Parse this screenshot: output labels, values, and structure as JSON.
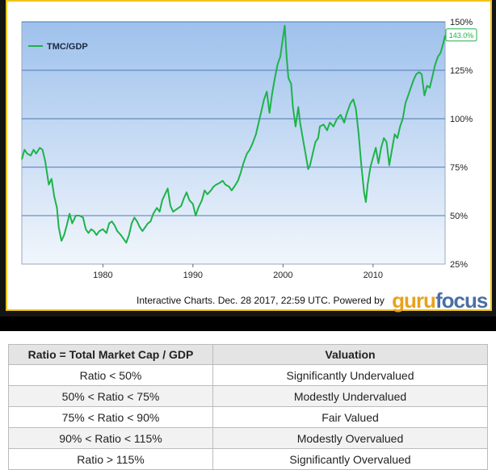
{
  "chart_data": {
    "type": "line",
    "legend": "top-left",
    "grid": true,
    "xlim": [
      1971,
      2018
    ],
    "ylim": [
      25,
      150
    ],
    "x_ticks": [
      {
        "value": 1980,
        "label": "1980"
      },
      {
        "value": 1990,
        "label": "1990"
      },
      {
        "value": 2000,
        "label": "2000"
      },
      {
        "value": 2010,
        "label": "2010"
      }
    ],
    "y_ticks": [
      {
        "value": 25,
        "label": "25%"
      },
      {
        "value": 50,
        "label": "50%"
      },
      {
        "value": 75,
        "label": "75%"
      },
      {
        "value": 100,
        "label": "100%"
      },
      {
        "value": 125,
        "label": "125%"
      },
      {
        "value": 150,
        "label": "150%"
      }
    ],
    "series": [
      {
        "name": "TMC/GDP",
        "color": "#1db34a",
        "last_label": "143.0%",
        "points": [
          [
            1971.0,
            79
          ],
          [
            1971.3,
            84
          ],
          [
            1971.6,
            82
          ],
          [
            1972.0,
            81
          ],
          [
            1972.3,
            84
          ],
          [
            1972.6,
            82
          ],
          [
            1973.0,
            85
          ],
          [
            1973.3,
            84
          ],
          [
            1973.6,
            78
          ],
          [
            1974.0,
            66
          ],
          [
            1974.3,
            69
          ],
          [
            1974.6,
            60
          ],
          [
            1974.9,
            54
          ],
          [
            1975.1,
            44
          ],
          [
            1975.4,
            37
          ],
          [
            1975.7,
            40
          ],
          [
            1976.0,
            45
          ],
          [
            1976.3,
            51
          ],
          [
            1976.6,
            46
          ],
          [
            1977.0,
            50
          ],
          [
            1977.4,
            50
          ],
          [
            1977.8,
            49
          ],
          [
            1978.1,
            43
          ],
          [
            1978.4,
            41
          ],
          [
            1978.7,
            43
          ],
          [
            1979.0,
            42
          ],
          [
            1979.3,
            40
          ],
          [
            1979.6,
            42
          ],
          [
            1980.0,
            43
          ],
          [
            1980.4,
            41
          ],
          [
            1980.7,
            46
          ],
          [
            1981.0,
            47
          ],
          [
            1981.3,
            45
          ],
          [
            1981.6,
            42
          ],
          [
            1982.0,
            40
          ],
          [
            1982.3,
            38
          ],
          [
            1982.6,
            36
          ],
          [
            1982.9,
            40
          ],
          [
            1983.2,
            46
          ],
          [
            1983.5,
            49
          ],
          [
            1983.8,
            47
          ],
          [
            1984.1,
            44
          ],
          [
            1984.4,
            42
          ],
          [
            1984.7,
            44
          ],
          [
            1985.0,
            46
          ],
          [
            1985.3,
            47
          ],
          [
            1985.6,
            51
          ],
          [
            1986.0,
            54
          ],
          [
            1986.3,
            52
          ],
          [
            1986.6,
            58
          ],
          [
            1986.9,
            61
          ],
          [
            1987.2,
            64
          ],
          [
            1987.5,
            55
          ],
          [
            1987.8,
            52
          ],
          [
            1988.1,
            53
          ],
          [
            1988.4,
            54
          ],
          [
            1988.7,
            55
          ],
          [
            1989.0,
            59
          ],
          [
            1989.3,
            62
          ],
          [
            1989.6,
            58
          ],
          [
            1990.0,
            56
          ],
          [
            1990.3,
            50
          ],
          [
            1990.6,
            54
          ],
          [
            1991.0,
            58
          ],
          [
            1991.3,
            63
          ],
          [
            1991.6,
            61
          ],
          [
            1992.0,
            63
          ],
          [
            1992.3,
            65
          ],
          [
            1992.6,
            66
          ],
          [
            1993.0,
            67
          ],
          [
            1993.3,
            68
          ],
          [
            1993.6,
            66
          ],
          [
            1994.0,
            65
          ],
          [
            1994.3,
            63
          ],
          [
            1994.6,
            65
          ],
          [
            1995.0,
            68
          ],
          [
            1995.3,
            72
          ],
          [
            1995.6,
            77
          ],
          [
            1996.0,
            82
          ],
          [
            1996.3,
            84
          ],
          [
            1996.6,
            87
          ],
          [
            1997.0,
            92
          ],
          [
            1997.3,
            98
          ],
          [
            1997.6,
            104
          ],
          [
            1997.9,
            110
          ],
          [
            1998.2,
            114
          ],
          [
            1998.5,
            103
          ],
          [
            1998.8,
            113
          ],
          [
            1999.1,
            121
          ],
          [
            1999.4,
            128
          ],
          [
            1999.7,
            132
          ],
          [
            2000.0,
            142
          ],
          [
            2000.2,
            148
          ],
          [
            2000.4,
            132
          ],
          [
            2000.6,
            121
          ],
          [
            2000.9,
            118
          ],
          [
            2001.1,
            106
          ],
          [
            2001.4,
            96
          ],
          [
            2001.7,
            106
          ],
          [
            2001.9,
            98
          ],
          [
            2002.2,
            90
          ],
          [
            2002.5,
            82
          ],
          [
            2002.8,
            74
          ],
          [
            2003.0,
            76
          ],
          [
            2003.3,
            82
          ],
          [
            2003.6,
            88
          ],
          [
            2003.9,
            90
          ],
          [
            2004.1,
            96
          ],
          [
            2004.5,
            97
          ],
          [
            2004.9,
            94
          ],
          [
            2005.2,
            98
          ],
          [
            2005.6,
            96
          ],
          [
            2006.0,
            100
          ],
          [
            2006.4,
            102
          ],
          [
            2006.8,
            98
          ],
          [
            2007.1,
            103
          ],
          [
            2007.5,
            108
          ],
          [
            2007.8,
            110
          ],
          [
            2008.1,
            105
          ],
          [
            2008.4,
            92
          ],
          [
            2008.7,
            76
          ],
          [
            2009.0,
            62
          ],
          [
            2009.2,
            57
          ],
          [
            2009.4,
            66
          ],
          [
            2009.7,
            75
          ],
          [
            2010.0,
            80
          ],
          [
            2010.3,
            85
          ],
          [
            2010.6,
            77
          ],
          [
            2010.9,
            85
          ],
          [
            2011.2,
            90
          ],
          [
            2011.5,
            88
          ],
          [
            2011.8,
            76
          ],
          [
            2012.1,
            84
          ],
          [
            2012.4,
            92
          ],
          [
            2012.7,
            90
          ],
          [
            2013.0,
            96
          ],
          [
            2013.3,
            100
          ],
          [
            2013.6,
            108
          ],
          [
            2013.9,
            112
          ],
          [
            2014.2,
            116
          ],
          [
            2014.5,
            120
          ],
          [
            2014.8,
            123
          ],
          [
            2015.1,
            124
          ],
          [
            2015.4,
            123
          ],
          [
            2015.7,
            112
          ],
          [
            2016.0,
            117
          ],
          [
            2016.3,
            116
          ],
          [
            2016.6,
            122
          ],
          [
            2016.9,
            128
          ],
          [
            2017.2,
            132
          ],
          [
            2017.5,
            134
          ],
          [
            2017.8,
            139
          ],
          [
            2018.0,
            143
          ]
        ]
      }
    ]
  },
  "credit": {
    "text": "Interactive Charts. Dec. 28 2017, 22:59 UTC. Powered by",
    "brand_a": "guru",
    "brand_b": "focus"
  },
  "table": {
    "headers": [
      "Ratio = Total Market Cap / GDP",
      "Valuation"
    ],
    "rows": [
      [
        "Ratio < 50%",
        "Significantly Undervalued"
      ],
      [
        "50% < Ratio < 75%",
        "Modestly Undervalued"
      ],
      [
        "75% < Ratio < 90%",
        "Fair Valued"
      ],
      [
        "90% < Ratio < 115%",
        "Modestly Overvalued"
      ],
      [
        "Ratio > 115%",
        "Significantly Overvalued"
      ]
    ]
  }
}
